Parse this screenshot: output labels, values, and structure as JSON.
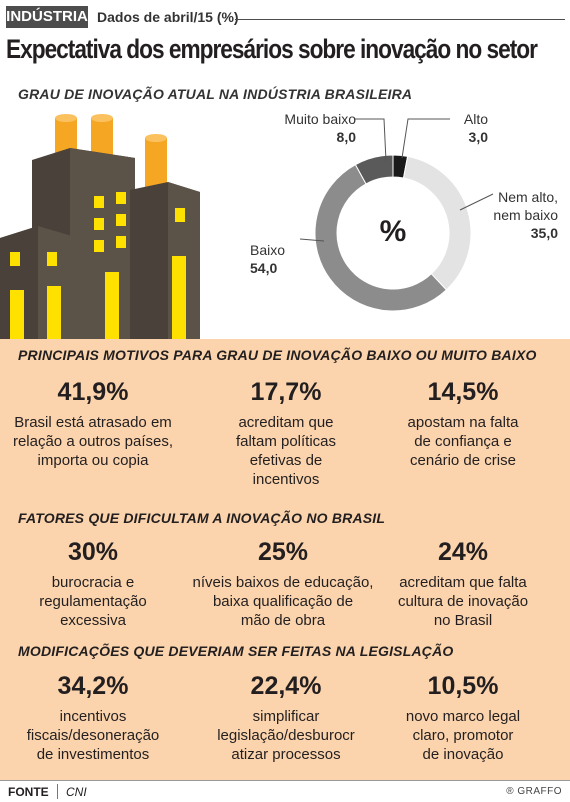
{
  "header": {
    "tag": "INDÚSTRIA",
    "date": "Dados de abril/15 (%)",
    "title": "Expectativa dos empresários sobre inovação no setor"
  },
  "chart_data": {
    "type": "pie",
    "title": "GRAU DE INOVAÇÃO ATUAL NA INDÚSTRIA BRASILEIRA",
    "center_label": "%",
    "slices": [
      {
        "label": "Alto",
        "value": 3.0,
        "value_text": "3,0",
        "color": "#1a1a1a"
      },
      {
        "label": "Nem alto, nem baixo",
        "label_lines": [
          "Nem alto,",
          "nem baixo"
        ],
        "value": 35.0,
        "value_text": "35,0",
        "color": "#e3e3e4"
      },
      {
        "label": "Baixo",
        "value": 54.0,
        "value_text": "54,0",
        "color": "#8c8c8c"
      },
      {
        "label": "Muito baixo",
        "value": 8.0,
        "value_text": "8,0",
        "color": "#5a5a5a"
      }
    ]
  },
  "sections": [
    {
      "title": "PRINCIPAIS MOTIVOS PARA GRAU DE INOVAÇÃO BAIXO OU MUITO BAIXO",
      "items": [
        {
          "pct": "41,9%",
          "lines": [
            "Brasil está atrasado em",
            "relação a outros países,",
            "importa ou copia"
          ]
        },
        {
          "pct": "17,7%",
          "lines": [
            "acreditam que",
            "faltam políticas",
            "efetivas de",
            "incentivos"
          ]
        },
        {
          "pct": "14,5%",
          "lines": [
            "apostam na falta",
            "de confiança e",
            "cenário de crise"
          ]
        }
      ]
    },
    {
      "title": "FATORES QUE DIFICULTAM A INOVAÇÃO NO BRASIL",
      "items": [
        {
          "pct": "30%",
          "lines": [
            "burocracia e",
            "regulamentação",
            "excessiva"
          ]
        },
        {
          "pct": "25%",
          "lines": [
            "níveis baixos de educação,",
            "baixa qualificação de",
            "mão de obra"
          ]
        },
        {
          "pct": "24%",
          "lines": [
            "acreditam que falta",
            "cultura de inovação",
            "no Brasil"
          ]
        }
      ]
    },
    {
      "title": "MODIFICAÇÕES QUE DEVERIAM SER FEITAS NA LEGISLAÇÃO",
      "items": [
        {
          "pct": "34,2%",
          "lines": [
            "incentivos",
            "fiscais/desoneração",
            "de investimentos"
          ]
        },
        {
          "pct": "22,4%",
          "lines": [
            "simplificar",
            "legislação/desburocr",
            "atizar processos"
          ]
        },
        {
          "pct": "10,5%",
          "lines": [
            "novo marco legal",
            "claro, promotor",
            "de inovação"
          ]
        }
      ]
    }
  ],
  "footer": {
    "source_label": "FONTE",
    "source_value": "CNI",
    "credit": "® GRAFFO"
  },
  "colors": {
    "panel_bg": "#fbd4ad",
    "tag_bg": "#4d4d4d",
    "building": "#5b5248",
    "chimney": "#f5a623",
    "window": "#ffe100"
  },
  "icons": [
    "factory-illustration"
  ]
}
